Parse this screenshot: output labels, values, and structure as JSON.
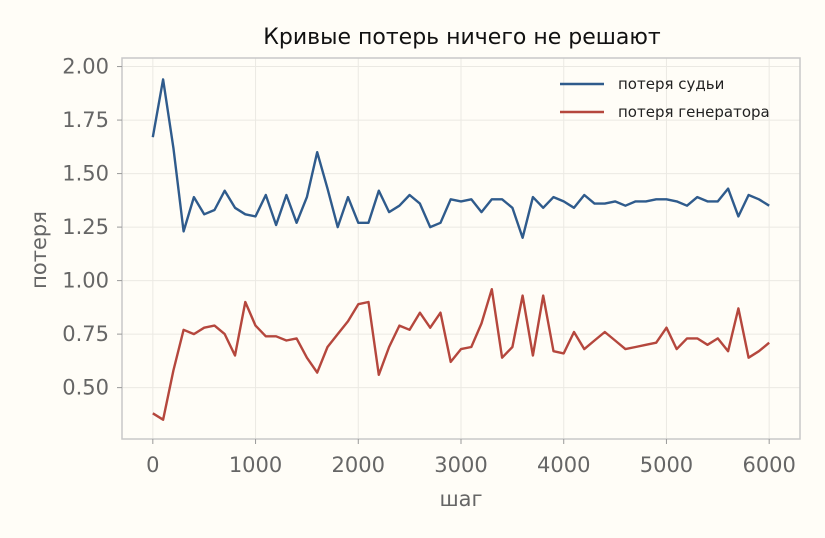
{
  "chart_data": {
    "type": "line",
    "title": "Кривые потерь ничего не решают",
    "xlabel": "шаг",
    "ylabel": "потеря",
    "xlim": [
      -300,
      6300
    ],
    "ylim": [
      0.26,
      2.04
    ],
    "xticks": [
      0,
      1000,
      2000,
      3000,
      4000,
      5000,
      6000
    ],
    "xtick_labels": [
      "0",
      "1000",
      "2000",
      "3000",
      "4000",
      "5000",
      "6000"
    ],
    "yticks": [
      0.5,
      0.75,
      1.0,
      1.25,
      1.5,
      1.75,
      2.0
    ],
    "ytick_labels": [
      "0.50",
      "0.75",
      "1.00",
      "1.25",
      "1.50",
      "1.75",
      "2.00"
    ],
    "grid": true,
    "legend_position": "top-right",
    "x": [
      0,
      100,
      200,
      300,
      400,
      500,
      600,
      700,
      800,
      900,
      1000,
      1100,
      1200,
      1300,
      1400,
      1500,
      1600,
      1700,
      1800,
      1900,
      2000,
      2100,
      2200,
      2300,
      2400,
      2500,
      2600,
      2700,
      2800,
      2900,
      3000,
      3100,
      3200,
      3300,
      3400,
      3500,
      3600,
      3700,
      3800,
      3900,
      4000,
      4100,
      4200,
      4300,
      4400,
      4500,
      4600,
      4700,
      4800,
      4900,
      5000,
      5100,
      5200,
      5300,
      5400,
      5500,
      5600,
      5700,
      5800,
      5900,
      6000
    ],
    "series": [
      {
        "name": "потеря судьи",
        "color": "#2f5b8c",
        "values": [
          1.67,
          1.94,
          1.62,
          1.23,
          1.39,
          1.31,
          1.33,
          1.42,
          1.34,
          1.31,
          1.3,
          1.4,
          1.26,
          1.4,
          1.27,
          1.39,
          1.6,
          1.43,
          1.25,
          1.39,
          1.27,
          1.27,
          1.42,
          1.32,
          1.35,
          1.4,
          1.36,
          1.25,
          1.27,
          1.38,
          1.37,
          1.38,
          1.32,
          1.38,
          1.38,
          1.34,
          1.2,
          1.39,
          1.34,
          1.39,
          1.37,
          1.34,
          1.4,
          1.36,
          1.36,
          1.37,
          1.35,
          1.37,
          1.37,
          1.38,
          1.38,
          1.37,
          1.35,
          1.39,
          1.37,
          1.37,
          1.43,
          1.3,
          1.4,
          1.38,
          1.35
        ]
      },
      {
        "name": "потеря генератора",
        "color": "#b5473d",
        "values": [
          0.38,
          0.35,
          0.58,
          0.77,
          0.75,
          0.78,
          0.79,
          0.75,
          0.65,
          0.9,
          0.79,
          0.74,
          0.74,
          0.72,
          0.73,
          0.64,
          0.57,
          0.69,
          0.75,
          0.81,
          0.89,
          0.9,
          0.56,
          0.69,
          0.79,
          0.77,
          0.85,
          0.78,
          0.85,
          0.62,
          0.68,
          0.69,
          0.8,
          0.96,
          0.64,
          0.69,
          0.93,
          0.65,
          0.93,
          0.67,
          0.66,
          0.76,
          0.68,
          0.72,
          0.76,
          0.72,
          0.68,
          0.69,
          0.7,
          0.71,
          0.78,
          0.68,
          0.73,
          0.73,
          0.7,
          0.73,
          0.67,
          0.87,
          0.64,
          0.67,
          0.71
        ]
      }
    ]
  }
}
